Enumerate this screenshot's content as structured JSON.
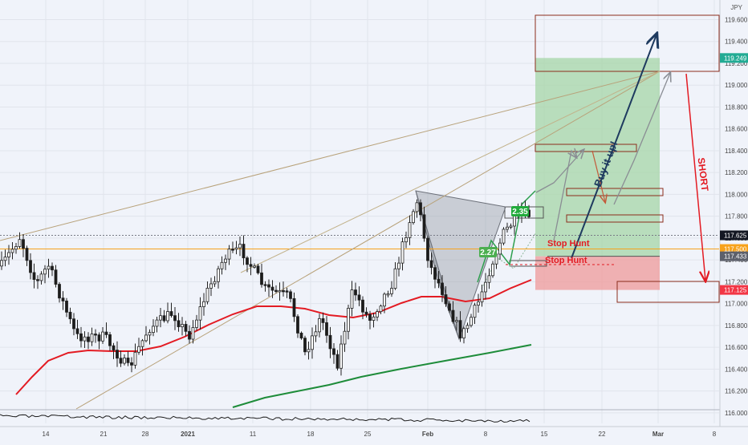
{
  "chart_data": {
    "type": "candlestick",
    "currency": "JPY",
    "y_axis": {
      "ticks": [
        "119.600",
        "119.400",
        "119.200",
        "119.000",
        "118.800",
        "118.600",
        "118.400",
        "118.200",
        "118.000",
        "117.800",
        "117.600",
        "117.400",
        "117.200",
        "117.000",
        "116.800",
        "116.600",
        "116.400",
        "116.200",
        "116.000"
      ],
      "tick_values": [
        119.6,
        119.4,
        119.2,
        119.0,
        118.8,
        118.6,
        118.4,
        118.2,
        118.0,
        117.8,
        117.6,
        117.4,
        117.2,
        117.0,
        116.8,
        116.6,
        116.4,
        116.2,
        116.0
      ],
      "range": [
        115.95,
        119.9
      ]
    },
    "x_axis": {
      "ticks": [
        "14",
        "21",
        "2021",
        "28",
        "11",
        "18",
        "25",
        "Feb",
        "8",
        "15",
        "22",
        "Mar",
        "8"
      ]
    },
    "price_labels": [
      {
        "value": 119.249,
        "text": "119.249",
        "color": "#22ab94"
      },
      {
        "value": 117.625,
        "text": "117.625",
        "color": "#131722"
      },
      {
        "value": 117.5,
        "text": "117.500",
        "color": "#f7a21b"
      },
      {
        "value": 117.433,
        "text": "117.433",
        "color": "#5d606b"
      },
      {
        "value": 117.125,
        "text": "117.125",
        "color": "#f23645"
      }
    ],
    "reference_lines": [
      {
        "name": "orange-level",
        "value": 117.5,
        "color": "#f7a21b"
      },
      {
        "name": "last-price",
        "value": 117.625,
        "color": "#787b86"
      }
    ],
    "trade": {
      "entry": 117.433,
      "target": 119.249,
      "stop": 117.125,
      "profit_color": "#a5d6a7",
      "loss_color": "#ef9a9a"
    },
    "moving_averages": [
      {
        "color": "#e31b23",
        "trend": "rising from 115.7 to 117.15"
      },
      {
        "color": "#1e8c3a",
        "trend": "rising from 116.0 to 116.55"
      }
    ],
    "annotations": [
      {
        "text": "Buy it up!",
        "color": "#1e3a5f"
      },
      {
        "text": "SHORT",
        "color": "#e31b23"
      },
      {
        "text": "Stop Hunt",
        "color": "#e31b23"
      },
      {
        "text": "Stop Hunt",
        "color": "#e31b23"
      },
      {
        "text": "2.35",
        "color": "#ffffff",
        "bg": "#22ab3c"
      },
      {
        "text": "2.27",
        "color": "#ffffff",
        "bg": "#4caf50"
      }
    ],
    "grid": true
  }
}
